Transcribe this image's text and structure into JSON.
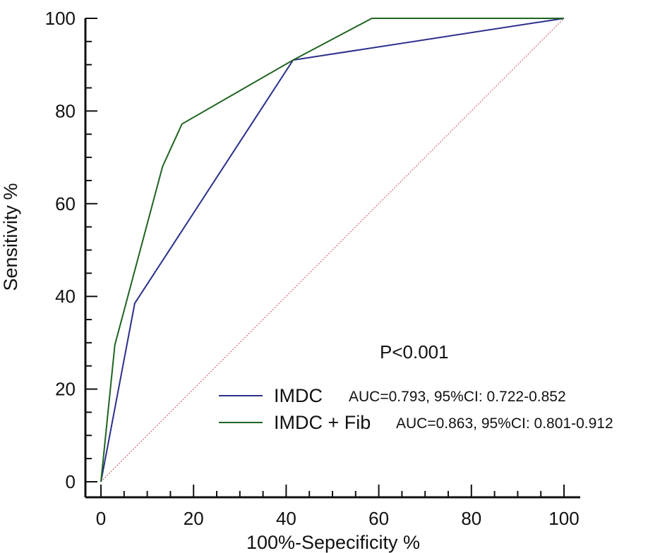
{
  "chart_data": {
    "type": "line",
    "title": "",
    "xlabel": "100%-Sepecificity %",
    "ylabel": "Sensitivity %",
    "xlim": [
      0,
      100
    ],
    "ylim": [
      0,
      100
    ],
    "xticks": [
      "0",
      "20",
      "40",
      "60",
      "80",
      "100"
    ],
    "yticks": [
      "0",
      "20",
      "40",
      "60",
      "80",
      "100"
    ],
    "annotation": "P<0.001",
    "legend_position": "lower-right",
    "series": [
      {
        "name": "IMDC",
        "auc_text": "AUC=0.793, 95%CI: 0.722-0.852",
        "color": "#2b2f8c",
        "x": [
          0,
          7.3,
          41.5,
          100
        ],
        "y": [
          0,
          38.5,
          91,
          100
        ]
      },
      {
        "name": "IMDC + Fib",
        "auc_text": "AUC=0.863, 95%CI: 0.801-0.912",
        "color": "#1f6420",
        "x": [
          0,
          3,
          13.3,
          17.5,
          41.5,
          58.5,
          100
        ],
        "y": [
          0,
          29.5,
          68,
          77.2,
          91,
          100,
          100
        ]
      }
    ],
    "reference_line": {
      "color": "#c0504d",
      "x": [
        0,
        100
      ],
      "y": [
        0,
        100
      ]
    }
  }
}
